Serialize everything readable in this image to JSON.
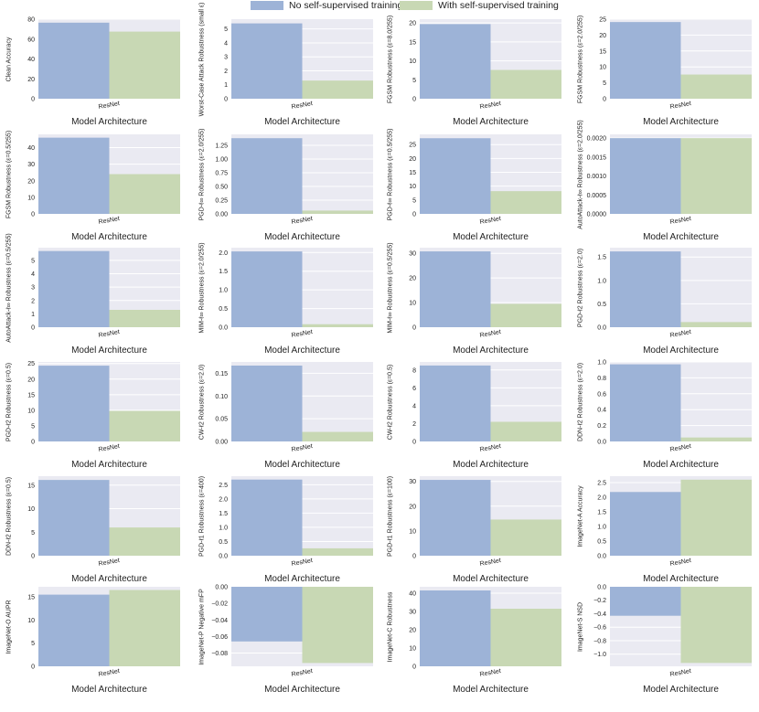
{
  "legend": {
    "no_ssl": "No self-supervised training",
    "with_ssl": "With self-supervised training"
  },
  "colors": {
    "no_ssl": "#9db3d7",
    "with_ssl": "#c8d8b4",
    "background": "#eaeaf2",
    "grid": "#ffffff"
  },
  "chart_data": [
    {
      "type": "bar",
      "ylabel": "Clean Accuracy",
      "xlabel": "Model Architecture",
      "categories": [
        "ResNet"
      ],
      "series": [
        {
          "name": "No self-supervised training",
          "values": [
            76.5
          ]
        },
        {
          "name": "With self-supervised training",
          "values": [
            67.5
          ]
        }
      ],
      "ylim": [
        0,
        80
      ],
      "yticks": [
        0,
        20,
        40,
        60,
        80
      ],
      "tick_labels": [
        "0",
        "20",
        "40",
        "60",
        "80"
      ]
    },
    {
      "type": "bar",
      "ylabel": "Worst-Case Attack Robustness (small ε)",
      "xlabel": "Model Architecture",
      "categories": [
        "ResNet"
      ],
      "series": [
        {
          "name": "No self-supervised training",
          "values": [
            5.4
          ]
        },
        {
          "name": "With self-supervised training",
          "values": [
            1.3
          ]
        }
      ],
      "ylim": [
        0,
        5.7
      ],
      "yticks": [
        0,
        1,
        2,
        3,
        4,
        5
      ],
      "tick_labels": [
        "0",
        "1",
        "2",
        "3",
        "4",
        "5"
      ]
    },
    {
      "type": "bar",
      "ylabel": "FGSM Robustness (ε=8.0/255)",
      "xlabel": "Model Architecture",
      "categories": [
        "ResNet"
      ],
      "series": [
        {
          "name": "No self-supervised training",
          "values": [
            19.7
          ]
        },
        {
          "name": "With self-supervised training",
          "values": [
            7.6
          ]
        }
      ],
      "ylim": [
        0,
        21
      ],
      "yticks": [
        0,
        5,
        10,
        15,
        20
      ],
      "tick_labels": [
        "0",
        "5",
        "10",
        "15",
        "20"
      ]
    },
    {
      "type": "bar",
      "ylabel": "FGSM Robustness (ε=2.0/255)",
      "xlabel": "Model Architecture",
      "categories": [
        "ResNet"
      ],
      "series": [
        {
          "name": "No self-supervised training",
          "values": [
            24.1
          ]
        },
        {
          "name": "With self-supervised training",
          "values": [
            7.6
          ]
        }
      ],
      "ylim": [
        0,
        25
      ],
      "yticks": [
        0,
        5,
        10,
        15,
        20,
        25
      ],
      "tick_labels": [
        "0",
        "5",
        "10",
        "15",
        "20",
        "25"
      ]
    },
    {
      "type": "bar",
      "ylabel": "FGSM Robustness (ε=0.5/255)",
      "xlabel": "Model Architecture",
      "categories": [
        "ResNet"
      ],
      "series": [
        {
          "name": "No self-supervised training",
          "values": [
            46.0
          ]
        },
        {
          "name": "With self-supervised training",
          "values": [
            24.0
          ]
        }
      ],
      "ylim": [
        0,
        48
      ],
      "yticks": [
        0,
        10,
        20,
        30,
        40
      ],
      "tick_labels": [
        "0",
        "10",
        "20",
        "30",
        "40"
      ]
    },
    {
      "type": "bar",
      "ylabel": "PGD-ℓ∞ Robustness (ε=2.0/255)",
      "xlabel": "Model Architecture",
      "categories": [
        "ResNet"
      ],
      "series": [
        {
          "name": "No self-supervised training",
          "values": [
            1.38
          ]
        },
        {
          "name": "With self-supervised training",
          "values": [
            0.06
          ]
        }
      ],
      "ylim": [
        0,
        1.45
      ],
      "yticks": [
        0,
        0.25,
        0.5,
        0.75,
        1.0,
        1.25
      ],
      "tick_labels": [
        "0.00",
        "0.25",
        "0.50",
        "0.75",
        "1.00",
        "1.25"
      ]
    },
    {
      "type": "bar",
      "ylabel": "PGD-ℓ∞ Robustness (ε=0.5/255)",
      "xlabel": "Model Architecture",
      "categories": [
        "ResNet"
      ],
      "series": [
        {
          "name": "No self-supervised training",
          "values": [
            27.3
          ]
        },
        {
          "name": "With self-supervised training",
          "values": [
            8.2
          ]
        }
      ],
      "ylim": [
        0,
        28.7
      ],
      "yticks": [
        0,
        5,
        10,
        15,
        20,
        25
      ],
      "tick_labels": [
        "0",
        "5",
        "10",
        "15",
        "20",
        "25"
      ]
    },
    {
      "type": "bar",
      "ylabel": "AutoAttack-ℓ∞ Robustness (ε=2.0/255)",
      "xlabel": "Model Architecture",
      "categories": [
        "ResNet"
      ],
      "series": [
        {
          "name": "No self-supervised training",
          "values": [
            0.002
          ]
        },
        {
          "name": "With self-supervised training",
          "values": [
            0.002
          ]
        }
      ],
      "ylim": [
        0,
        0.0021
      ],
      "yticks": [
        0,
        0.0005,
        0.001,
        0.0015,
        0.002
      ],
      "tick_labels": [
        "0.0000",
        "0.0005",
        "0.0010",
        "0.0015",
        "0.0020"
      ]
    },
    {
      "type": "bar",
      "ylabel": "AutoAttack-ℓ∞ Robustness (ε=0.5/255)",
      "xlabel": "Model Architecture",
      "categories": [
        "ResNet"
      ],
      "series": [
        {
          "name": "No self-supervised training",
          "values": [
            5.7
          ]
        },
        {
          "name": "With self-supervised training",
          "values": [
            1.3
          ]
        }
      ],
      "ylim": [
        0,
        5.95
      ],
      "yticks": [
        0,
        1,
        2,
        3,
        4,
        5
      ],
      "tick_labels": [
        "0",
        "1",
        "2",
        "3",
        "4",
        "5"
      ]
    },
    {
      "type": "bar",
      "ylabel": "MIM-ℓ∞ Robustness (ε=2.0/255)",
      "xlabel": "Model Architecture",
      "categories": [
        "ResNet"
      ],
      "series": [
        {
          "name": "No self-supervised training",
          "values": [
            2.03
          ]
        },
        {
          "name": "With self-supervised training",
          "values": [
            0.08
          ]
        }
      ],
      "ylim": [
        0,
        2.13
      ],
      "yticks": [
        0,
        0.5,
        1.0,
        1.5,
        2.0
      ],
      "tick_labels": [
        "0.0",
        "0.5",
        "1.0",
        "1.5",
        "2.0"
      ]
    },
    {
      "type": "bar",
      "ylabel": "MIM-ℓ∞ Robustness (ε=0.5/255)",
      "xlabel": "Model Architecture",
      "categories": [
        "ResNet"
      ],
      "series": [
        {
          "name": "No self-supervised training",
          "values": [
            30.8
          ]
        },
        {
          "name": "With self-supervised training",
          "values": [
            9.5
          ]
        }
      ],
      "ylim": [
        0,
        32.3
      ],
      "yticks": [
        0,
        10,
        20,
        30
      ],
      "tick_labels": [
        "0",
        "10",
        "20",
        "30"
      ]
    },
    {
      "type": "bar",
      "ylabel": "PGD-ℓ2 Robustness (ε=2.0)",
      "xlabel": "Model Architecture",
      "categories": [
        "ResNet"
      ],
      "series": [
        {
          "name": "No self-supervised training",
          "values": [
            1.62
          ]
        },
        {
          "name": "With self-supervised training",
          "values": [
            0.11
          ]
        }
      ],
      "ylim": [
        0,
        1.7
      ],
      "yticks": [
        0,
        0.5,
        1.0,
        1.5
      ],
      "tick_labels": [
        "0.0",
        "0.5",
        "1.0",
        "1.5"
      ]
    },
    {
      "type": "bar",
      "ylabel": "PGD-ℓ2 Robustness (ε=0.5)",
      "xlabel": "Model Architecture",
      "categories": [
        "ResNet"
      ],
      "series": [
        {
          "name": "No self-supervised training",
          "values": [
            24.3
          ]
        },
        {
          "name": "With self-supervised training",
          "values": [
            9.8
          ]
        }
      ],
      "ylim": [
        0,
        25.5
      ],
      "yticks": [
        0,
        5,
        10,
        15,
        20,
        25
      ],
      "tick_labels": [
        "0",
        "5",
        "10",
        "15",
        "20",
        "25"
      ]
    },
    {
      "type": "bar",
      "ylabel": "CW-ℓ2 Robustness (ε=2.0)",
      "xlabel": "Model Architecture",
      "categories": [
        "ResNet"
      ],
      "series": [
        {
          "name": "No self-supervised training",
          "values": [
            0.167
          ]
        },
        {
          "name": "With self-supervised training",
          "values": [
            0.021
          ]
        }
      ],
      "ylim": [
        0,
        0.175
      ],
      "yticks": [
        0,
        0.05,
        0.1,
        0.15
      ],
      "tick_labels": [
        "0.00",
        "0.05",
        "0.10",
        "0.15"
      ]
    },
    {
      "type": "bar",
      "ylabel": "CW-ℓ2 Robustness (ε=0.5)",
      "xlabel": "Model Architecture",
      "categories": [
        "ResNet"
      ],
      "series": [
        {
          "name": "No self-supervised training",
          "values": [
            8.5
          ]
        },
        {
          "name": "With self-supervised training",
          "values": [
            2.2
          ]
        }
      ],
      "ylim": [
        0,
        8.9
      ],
      "yticks": [
        0,
        2,
        4,
        6,
        8
      ],
      "tick_labels": [
        "0",
        "2",
        "4",
        "6",
        "8"
      ]
    },
    {
      "type": "bar",
      "ylabel": "DDN-ℓ2 Robustness (ε=2.0)",
      "xlabel": "Model Architecture",
      "categories": [
        "ResNet"
      ],
      "series": [
        {
          "name": "No self-supervised training",
          "values": [
            0.97
          ]
        },
        {
          "name": "With self-supervised training",
          "values": [
            0.05
          ]
        }
      ],
      "ylim": [
        0,
        1.0
      ],
      "yticks": [
        0,
        0.2,
        0.4,
        0.6,
        0.8,
        1.0
      ],
      "tick_labels": [
        "0.0",
        "0.2",
        "0.4",
        "0.6",
        "0.8",
        "1.0"
      ]
    },
    {
      "type": "bar",
      "ylabel": "DDN-ℓ2 Robustness (ε=0.5)",
      "xlabel": "Model Architecture",
      "categories": [
        "ResNet"
      ],
      "series": [
        {
          "name": "No self-supervised training",
          "values": [
            16.1
          ]
        },
        {
          "name": "With self-supervised training",
          "values": [
            6.0
          ]
        }
      ],
      "ylim": [
        0,
        16.9
      ],
      "yticks": [
        0,
        5,
        10,
        15
      ],
      "tick_labels": [
        "0",
        "5",
        "10",
        "15"
      ]
    },
    {
      "type": "bar",
      "ylabel": "PGD-ℓ1 Robustness (ε=400)",
      "xlabel": "Model Architecture",
      "categories": [
        "ResNet"
      ],
      "series": [
        {
          "name": "No self-supervised training",
          "values": [
            2.68
          ]
        },
        {
          "name": "With self-supervised training",
          "values": [
            0.26
          ]
        }
      ],
      "ylim": [
        0,
        2.8
      ],
      "yticks": [
        0,
        0.5,
        1.0,
        1.5,
        2.0,
        2.5
      ],
      "tick_labels": [
        "0.0",
        "0.5",
        "1.0",
        "1.5",
        "2.0",
        "2.5"
      ]
    },
    {
      "type": "bar",
      "ylabel": "PGD-ℓ1 Robustness (ε=100)",
      "xlabel": "Model Architecture",
      "categories": [
        "ResNet"
      ],
      "series": [
        {
          "name": "No self-supervised training",
          "values": [
            30.6
          ]
        },
        {
          "name": "With self-supervised training",
          "values": [
            14.6
          ]
        }
      ],
      "ylim": [
        0,
        32.1
      ],
      "yticks": [
        0,
        10,
        20,
        30
      ],
      "tick_labels": [
        "0",
        "10",
        "20",
        "30"
      ]
    },
    {
      "type": "bar",
      "ylabel": "ImageNet-A Accuracy",
      "xlabel": "Model Architecture",
      "categories": [
        "ResNet"
      ],
      "series": [
        {
          "name": "No self-supervised training",
          "values": [
            2.18
          ]
        },
        {
          "name": "With self-supervised training",
          "values": [
            2.6
          ]
        }
      ],
      "ylim": [
        0,
        2.72
      ],
      "yticks": [
        0,
        0.5,
        1.0,
        1.5,
        2.0,
        2.5
      ],
      "tick_labels": [
        "0.0",
        "0.5",
        "1.0",
        "1.5",
        "2.0",
        "2.5"
      ]
    },
    {
      "type": "bar",
      "ylabel": "ImageNet-O AUPR",
      "xlabel": "Model Architecture",
      "categories": [
        "ResNet"
      ],
      "series": [
        {
          "name": "No self-supervised training",
          "values": [
            15.5
          ]
        },
        {
          "name": "With self-supervised training",
          "values": [
            16.5
          ]
        }
      ],
      "ylim": [
        0,
        17.2
      ],
      "yticks": [
        0,
        5,
        10,
        15
      ],
      "tick_labels": [
        "0",
        "5",
        "10",
        "15"
      ]
    },
    {
      "type": "bar",
      "ylabel": "ImageNet-P Negative mFP",
      "xlabel": "Model Architecture",
      "categories": [
        "ResNet"
      ],
      "series": [
        {
          "name": "No self-supervised training",
          "values": [
            -0.066
          ]
        },
        {
          "name": "With self-supervised training",
          "values": [
            -0.092
          ]
        }
      ],
      "ylim": [
        -0.096,
        0
      ],
      "yticks": [
        0,
        -0.02,
        -0.04,
        -0.06,
        -0.08
      ],
      "tick_labels": [
        "0.00",
        "−0.02",
        "−0.04",
        "−0.06",
        "−0.08"
      ]
    },
    {
      "type": "bar",
      "ylabel": "ImageNet-C Robustness",
      "xlabel": "Model Architecture",
      "categories": [
        "ResNet"
      ],
      "series": [
        {
          "name": "No self-supervised training",
          "values": [
            41.5
          ]
        },
        {
          "name": "With self-supervised training",
          "values": [
            31.5
          ]
        }
      ],
      "ylim": [
        0,
        43.5
      ],
      "yticks": [
        0,
        10,
        20,
        30,
        40
      ],
      "tick_labels": [
        "0",
        "10",
        "20",
        "30",
        "40"
      ]
    },
    {
      "type": "bar",
      "ylabel": "ImageNet-S NSD",
      "xlabel": "Model Architecture",
      "categories": [
        "ResNet"
      ],
      "series": [
        {
          "name": "No self-supervised training",
          "values": [
            -0.43
          ]
        },
        {
          "name": "With self-supervised training",
          "values": [
            -1.13
          ]
        }
      ],
      "ylim": [
        -1.18,
        0
      ],
      "yticks": [
        0,
        -0.2,
        -0.4,
        -0.6,
        -0.8,
        -1.0
      ],
      "tick_labels": [
        "0.0",
        "−0.2",
        "−0.4",
        "−0.6",
        "−0.8",
        "−1.0"
      ]
    }
  ]
}
